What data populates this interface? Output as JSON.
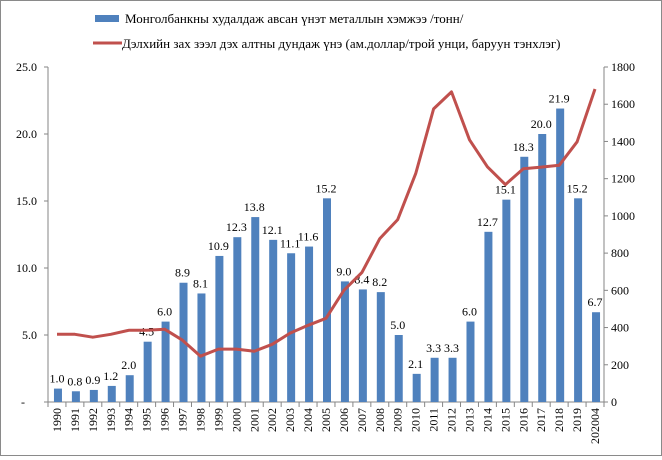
{
  "chart_data": {
    "type": "bar+line",
    "categories": [
      "1990",
      "1991",
      "1992",
      "1993",
      "1994",
      "1995",
      "1996",
      "1997",
      "1998",
      "1999",
      "2000",
      "2001",
      "2002",
      "2003",
      "2004",
      "2005",
      "2006",
      "2007",
      "2008",
      "2009",
      "2010",
      "2011",
      "2012",
      "2013",
      "2014",
      "2015",
      "2016",
      "2017",
      "2018",
      "2019",
      "202004"
    ],
    "series": [
      {
        "name": "Монголбанкны худалдаж  авсан үнэт металлын хэмжээ /тонн/",
        "type": "bar",
        "axis": "left",
        "color": "#4f81bd",
        "values": [
          1.0,
          0.8,
          0.9,
          1.2,
          2.0,
          4.5,
          6.0,
          8.9,
          8.1,
          10.9,
          12.3,
          13.8,
          12.1,
          11.1,
          11.6,
          15.2,
          9.0,
          8.4,
          8.2,
          5.0,
          2.1,
          3.3,
          3.3,
          6.0,
          12.7,
          15.1,
          18.3,
          20.0,
          21.9,
          15.2,
          6.7
        ],
        "labels": [
          "1.0",
          "0.8",
          "0.9",
          "1.2",
          "2.0",
          "4.5",
          "6.0",
          "8.9",
          "8.1",
          "10.9",
          "12.3",
          "13.8",
          "12.1",
          "11.1",
          "11.6",
          "15.2",
          "9.0",
          "8.4",
          "8.2",
          "5.0",
          "2.1",
          "3.3",
          "3.3",
          "6.0",
          "12.7",
          "15.1",
          "18.3",
          "20.0",
          "21.9",
          "15.2",
          "6.7"
        ]
      },
      {
        "name": "Дэлхийн  зах зээл дэх  алтны дундаж  үнэ (ам.доллар/трой  унци, баруун тэнхлэг)",
        "type": "line",
        "axis": "right",
        "color": "#c0504d",
        "values": [
          364,
          364,
          348,
          364,
          385,
          385,
          391,
          332,
          246,
          284,
          284,
          273,
          310,
          370,
          412,
          450,
          600,
          696,
          878,
          980,
          1227,
          1575,
          1666,
          1409,
          1264,
          1168,
          1253,
          1262,
          1272,
          1398,
          1682
        ]
      }
    ],
    "left_axis": {
      "ylim": [
        0,
        25
      ],
      "ticks": [
        "-",
        "5.0",
        "10.0",
        "15.0",
        "20.0",
        "25.0"
      ]
    },
    "right_axis": {
      "ylim": [
        0,
        1800
      ],
      "ticks": [
        "0",
        "200",
        "400",
        "600",
        "800",
        "1000",
        "1200",
        "1400",
        "1600",
        "1800"
      ]
    },
    "legend": "top",
    "grid": false
  }
}
